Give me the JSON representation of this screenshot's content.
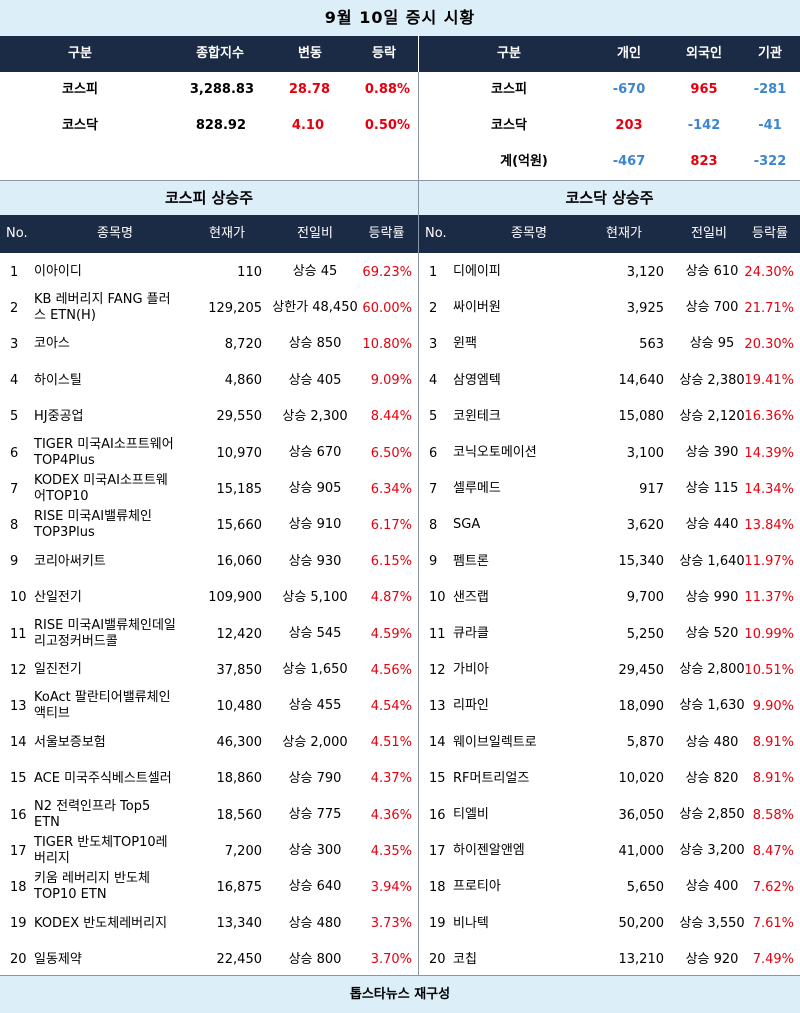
{
  "title": "9월 10일 증시 시황",
  "index_table": {
    "headers": [
      "구분",
      "종합지수",
      "변동",
      "등락"
    ],
    "rows": [
      {
        "name": "코스피",
        "index": "3,288.83",
        "change": "28.78",
        "rate": "0.88%"
      },
      {
        "name": "코스닥",
        "index": "828.92",
        "change": "4.10",
        "rate": "0.50%"
      }
    ]
  },
  "investor_table": {
    "headers": [
      "구분",
      "개인",
      "외국인",
      "기관"
    ],
    "rows": [
      {
        "name": "코스피",
        "individual": "-670",
        "foreign": "965",
        "institution": "-281"
      },
      {
        "name": "코스닥",
        "individual": "203",
        "foreign": "-142",
        "institution": "-41"
      },
      {
        "name": "계(억원)",
        "individual": "-467",
        "foreign": "823",
        "institution": "-322"
      }
    ]
  },
  "kospi_section_title": "코스피 상승주",
  "kosdaq_section_title": "코스닥 상승주",
  "list_headers": [
    "No.",
    "종목명",
    "현재가",
    "전일비",
    "등락률"
  ],
  "kospi_gainers": [
    {
      "no": "1",
      "name": "이아이디",
      "price": "110",
      "change": "상승 45",
      "rate": "69.23%"
    },
    {
      "no": "2",
      "name": "KB 레버리지 FANG 플러스 ETN(H)",
      "price": "129,205",
      "change": "상한가 48,450",
      "rate": "60.00%"
    },
    {
      "no": "3",
      "name": "코아스",
      "price": "8,720",
      "change": "상승 850",
      "rate": "10.80%"
    },
    {
      "no": "4",
      "name": "하이스틸",
      "price": "4,860",
      "change": "상승 405",
      "rate": "9.09%"
    },
    {
      "no": "5",
      "name": "HJ중공업",
      "price": "29,550",
      "change": "상승 2,300",
      "rate": "8.44%"
    },
    {
      "no": "6",
      "name": "TIGER 미국AI소프트웨어TOP4Plus",
      "price": "10,970",
      "change": "상승 670",
      "rate": "6.50%"
    },
    {
      "no": "7",
      "name": "KODEX 미국AI소프트웨어TOP10",
      "price": "15,185",
      "change": "상승 905",
      "rate": "6.34%"
    },
    {
      "no": "8",
      "name": "RISE 미국AI밸류체인TOP3Plus",
      "price": "15,660",
      "change": "상승 910",
      "rate": "6.17%"
    },
    {
      "no": "9",
      "name": "코리아써키트",
      "price": "16,060",
      "change": "상승 930",
      "rate": "6.15%"
    },
    {
      "no": "10",
      "name": "산일전기",
      "price": "109,900",
      "change": "상승 5,100",
      "rate": "4.87%"
    },
    {
      "no": "11",
      "name": "RISE 미국AI밸류체인데일리고정커버드콜",
      "price": "12,420",
      "change": "상승 545",
      "rate": "4.59%"
    },
    {
      "no": "12",
      "name": "일진전기",
      "price": "37,850",
      "change": "상승 1,650",
      "rate": "4.56%"
    },
    {
      "no": "13",
      "name": "KoAct 팔란티어밸류체인액티브",
      "price": "10,480",
      "change": "상승 455",
      "rate": "4.54%"
    },
    {
      "no": "14",
      "name": "서울보증보험",
      "price": "46,300",
      "change": "상승 2,000",
      "rate": "4.51%"
    },
    {
      "no": "15",
      "name": "ACE 미국주식베스트셀러",
      "price": "18,860",
      "change": "상승 790",
      "rate": "4.37%"
    },
    {
      "no": "16",
      "name": "N2 전력인프라 Top5 ETN",
      "price": "18,560",
      "change": "상승 775",
      "rate": "4.36%"
    },
    {
      "no": "17",
      "name": "TIGER 반도체TOP10레버리지",
      "price": "7,200",
      "change": "상승 300",
      "rate": "4.35%"
    },
    {
      "no": "18",
      "name": "키움 레버리지 반도체 TOP10 ETN",
      "price": "16,875",
      "change": "상승 640",
      "rate": "3.94%"
    },
    {
      "no": "19",
      "name": "KODEX 반도체레버리지",
      "price": "13,340",
      "change": "상승 480",
      "rate": "3.73%"
    },
    {
      "no": "20",
      "name": "일동제약",
      "price": "22,450",
      "change": "상승 800",
      "rate": "3.70%"
    }
  ],
  "kosdaq_gainers": [
    {
      "no": "1",
      "name": "디에이피",
      "price": "3,120",
      "change": "상승 610",
      "rate": "24.30%"
    },
    {
      "no": "2",
      "name": "싸이버원",
      "price": "3,925",
      "change": "상승 700",
      "rate": "21.71%"
    },
    {
      "no": "3",
      "name": "윈팩",
      "price": "563",
      "change": "상승 95",
      "rate": "20.30%"
    },
    {
      "no": "4",
      "name": "삼영엠텍",
      "price": "14,640",
      "change": "상승 2,380",
      "rate": "19.41%"
    },
    {
      "no": "5",
      "name": "코윈테크",
      "price": "15,080",
      "change": "상승 2,120",
      "rate": "16.36%"
    },
    {
      "no": "6",
      "name": "코닉오토메이션",
      "price": "3,100",
      "change": "상승 390",
      "rate": "14.39%"
    },
    {
      "no": "7",
      "name": "셀루메드",
      "price": "917",
      "change": "상승 115",
      "rate": "14.34%"
    },
    {
      "no": "8",
      "name": "SGA",
      "price": "3,620",
      "change": "상승 440",
      "rate": "13.84%"
    },
    {
      "no": "9",
      "name": "펨트론",
      "price": "15,340",
      "change": "상승 1,640",
      "rate": "11.97%"
    },
    {
      "no": "10",
      "name": "샌즈랩",
      "price": "9,700",
      "change": "상승 990",
      "rate": "11.37%"
    },
    {
      "no": "11",
      "name": "큐라클",
      "price": "5,250",
      "change": "상승 520",
      "rate": "10.99%"
    },
    {
      "no": "12",
      "name": "가비아",
      "price": "29,450",
      "change": "상승 2,800",
      "rate": "10.51%"
    },
    {
      "no": "13",
      "name": "리파인",
      "price": "18,090",
      "change": "상승 1,630",
      "rate": "9.90%"
    },
    {
      "no": "14",
      "name": "웨이브일렉트로",
      "price": "5,870",
      "change": "상승 480",
      "rate": "8.91%"
    },
    {
      "no": "15",
      "name": "RF머트리얼즈",
      "price": "10,020",
      "change": "상승 820",
      "rate": "8.91%"
    },
    {
      "no": "16",
      "name": "티엘비",
      "price": "36,050",
      "change": "상승 2,850",
      "rate": "8.58%"
    },
    {
      "no": "17",
      "name": "하이젠알앤엠",
      "price": "41,000",
      "change": "상승 3,200",
      "rate": "8.47%"
    },
    {
      "no": "18",
      "name": "프로티아",
      "price": "5,650",
      "change": "상승 400",
      "rate": "7.62%"
    },
    {
      "no": "19",
      "name": "비나텍",
      "price": "50,200",
      "change": "상승 3,550",
      "rate": "7.61%"
    },
    {
      "no": "20",
      "name": "코칩",
      "price": "13,210",
      "change": "상승 920",
      "rate": "7.49%"
    }
  ],
  "footer": "톱스타뉴스 재구성",
  "colors": {
    "header_bg": "#1b2a45",
    "title_bg": "#dceef7",
    "up": "#e4000f",
    "down": "#3c85cf"
  }
}
